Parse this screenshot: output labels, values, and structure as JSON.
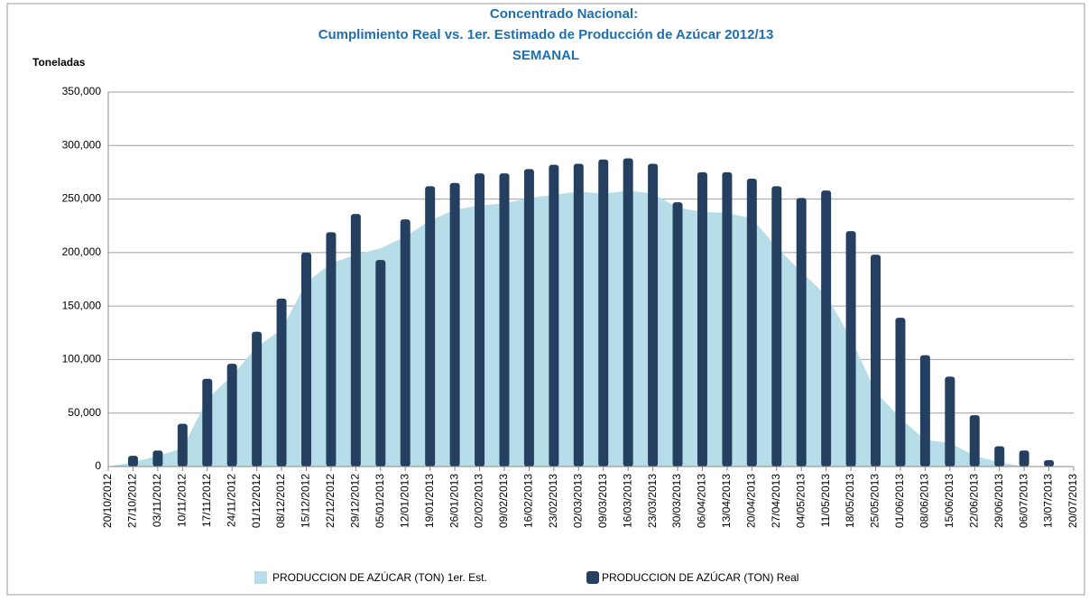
{
  "chart_data": {
    "type": "bar-area",
    "title_lines": [
      "Concentrado Nacional:",
      "Cumplimiento Real vs. 1er. Estimado de Producción de Azúcar 2012/13",
      "SEMANAL"
    ],
    "y_label": "Toneladas",
    "categories": [
      "20/10/2012",
      "27/10/2012",
      "03/11/2012",
      "10/11/2012",
      "17/11/2012",
      "24/11/2012",
      "01/12/2012",
      "08/12/2012",
      "15/12/2012",
      "22/12/2012",
      "29/12/2012",
      "05/01/2013",
      "12/01/2013",
      "19/01/2013",
      "26/01/2013",
      "02/02/2013",
      "09/02/2013",
      "16/02/2013",
      "23/02/2013",
      "02/03/2013",
      "09/03/2013",
      "16/03/2013",
      "23/03/2013",
      "30/03/2013",
      "06/04/2013",
      "13/04/2013",
      "20/04/2013",
      "27/04/2013",
      "04/05/2013",
      "11/05/2013",
      "18/05/2013",
      "25/05/2013",
      "01/06/2013",
      "08/06/2013",
      "15/06/2013",
      "22/06/2013",
      "29/06/2013",
      "06/07/2013",
      "13/07/2013",
      "20/07/2013"
    ],
    "series": [
      {
        "name": "PRODUCCION DE AZÚCAR (TON) 1er. Est.",
        "kind": "area",
        "color": "#b7dde8",
        "values": [
          0,
          4000,
          10000,
          17000,
          63000,
          85000,
          112000,
          128000,
          172000,
          190000,
          198000,
          204000,
          215000,
          230000,
          240000,
          244000,
          246000,
          251000,
          254000,
          257000,
          255000,
          258000,
          255000,
          242000,
          238000,
          237000,
          232000,
          205000,
          182000,
          160000,
          120000,
          70000,
          45000,
          25000,
          22000,
          10000,
          4000,
          0,
          0,
          0
        ]
      },
      {
        "name": "PRODUCCION DE AZÚCAR (TON) Real",
        "kind": "bar",
        "color": "#243f60",
        "values": [
          null,
          10000,
          15000,
          40000,
          82000,
          96000,
          126000,
          157000,
          200000,
          219000,
          236000,
          193000,
          231000,
          262000,
          265000,
          274000,
          274000,
          278000,
          282000,
          283000,
          287000,
          288000,
          283000,
          247000,
          275000,
          275000,
          269000,
          262000,
          251000,
          258000,
          220000,
          198000,
          139000,
          104000,
          84000,
          48000,
          19000,
          15000,
          6000,
          null
        ]
      }
    ],
    "ylim": [
      0,
      350000
    ],
    "yticks": [
      0,
      {
        "value": 50000,
        "label": "50,000"
      },
      {
        "value": 100000,
        "label": "100,000"
      },
      {
        "value": 150000,
        "label": "150,000"
      },
      {
        "value": 200000,
        "label": "200,000"
      },
      {
        "value": 250000,
        "label": "250,000"
      },
      {
        "value": 300000,
        "label": "300,000"
      },
      {
        "value": 350000,
        "label": "350,000"
      }
    ],
    "grid": true,
    "legend": "bottom"
  }
}
